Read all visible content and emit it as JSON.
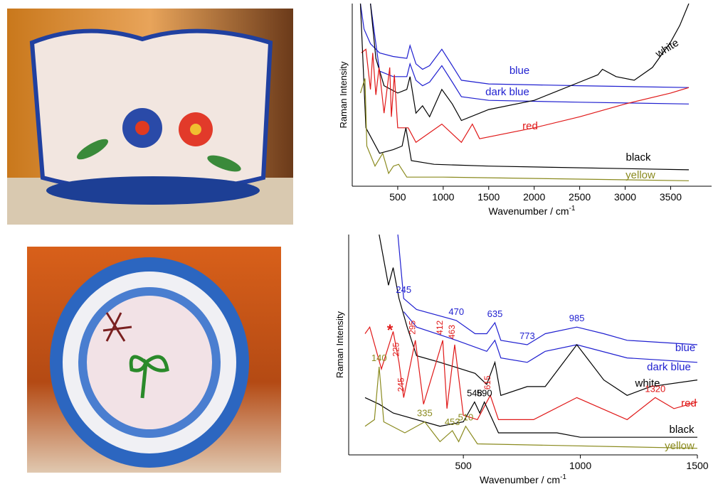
{
  "chart_data": [
    {
      "type": "line",
      "y_label": "Raman Intensity",
      "x_label": "Wavenumber / cm",
      "x_label_sup": "-1",
      "xlim": [
        0,
        3950
      ],
      "xticks": [
        500,
        1000,
        1500,
        2000,
        2500,
        3000,
        3500
      ],
      "ylim": [
        0,
        100
      ],
      "series": [
        {
          "name": "blue",
          "color": "#1f1fd0",
          "x": [
            90,
            130,
            200,
            300,
            450,
            600,
            635,
            700,
            773,
            850,
            985,
            1100,
            1200,
            1500,
            2500,
            3700
          ],
          "values": [
            100,
            86,
            78,
            73,
            71,
            70,
            77,
            67,
            64,
            66,
            75,
            66,
            58,
            56,
            55,
            54
          ],
          "peaks": []
        },
        {
          "name": "dark blue",
          "color": "#1f1fd0",
          "x": [
            200,
            300,
            450,
            600,
            635,
            700,
            773,
            850,
            985,
            1100,
            1200,
            1500,
            2500,
            3700
          ],
          "values": [
            100,
            63,
            60,
            60,
            67,
            58,
            55,
            57,
            66,
            57,
            49,
            47,
            46,
            45
          ],
          "peaks": []
        },
        {
          "name": "white",
          "color": "#000000",
          "x": [
            200,
            260,
            350,
            500,
            600,
            635,
            700,
            773,
            850,
            985,
            1100,
            1200,
            1500,
            2000,
            2500,
            2700,
            2750,
            2900,
            3100,
            3300,
            3500,
            3600,
            3700
          ],
          "values": [
            100,
            70,
            55,
            51,
            53,
            60,
            40,
            44,
            38,
            53,
            45,
            36,
            42,
            47,
            57,
            61,
            64,
            60,
            58,
            65,
            79,
            88,
            100
          ],
          "peaks": []
        },
        {
          "name": "red",
          "color": "#e01818",
          "x": [
            100,
            150,
            200,
            225,
            260,
            295,
            350,
            412,
            430,
            463,
            500,
            615,
            700,
            985,
            1200,
            1320,
            1400,
            2000,
            2500,
            3000,
            3500,
            3700
          ],
          "values": [
            73,
            75,
            53,
            73,
            50,
            65,
            40,
            65,
            38,
            61,
            32,
            32,
            24,
            34,
            24,
            34,
            26,
            32,
            38,
            45,
            51,
            54
          ],
          "peaks": []
        },
        {
          "name": "black",
          "color": "#000000",
          "x": [
            90,
            150,
            300,
            450,
            548,
            590,
            650,
            900,
            1500,
            3700
          ],
          "values": [
            100,
            32,
            18,
            20,
            22,
            32,
            14,
            12,
            11,
            9
          ],
          "peaks": []
        },
        {
          "name": "yellow",
          "color": "#8a8a1e",
          "x": [
            90,
            140,
            160,
            250,
            335,
            400,
            453,
            510,
            600,
            1000,
            3700
          ],
          "values": [
            51,
            59,
            22,
            11,
            18,
            7,
            11,
            12,
            5,
            5,
            3
          ],
          "peaks": []
        }
      ]
    },
    {
      "type": "line",
      "y_label": "Raman Intensity",
      "x_label": "Wavenumber / cm",
      "x_label_sup": "-1",
      "xlim": [
        10,
        1500
      ],
      "xticks": [
        500,
        1000,
        1500
      ],
      "ylim": [
        0,
        100
      ],
      "annotation": "*",
      "series": [
        {
          "name": "blue",
          "color": "#1f1fd0",
          "x": [
            220,
            245,
            300,
            470,
            550,
            600,
            635,
            660,
            773,
            850,
            985,
            1100,
            1200,
            1500
          ],
          "values": [
            100,
            71,
            66,
            61,
            55,
            55,
            60,
            52,
            50,
            55,
            58,
            55,
            52,
            50
          ],
          "peaks": [
            245,
            470,
            635,
            773,
            985
          ]
        },
        {
          "name": "dark blue",
          "color": "#1f1fd0",
          "x": [
            245,
            300,
            470,
            600,
            635,
            660,
            773,
            850,
            985,
            1200,
            1500
          ],
          "values": [
            65,
            58,
            52,
            47,
            52,
            44,
            42,
            47,
            50,
            44,
            42
          ],
          "peaks": []
        },
        {
          "name": "white",
          "color": "#000000",
          "x": [
            140,
            180,
            200,
            225,
            260,
            300,
            400,
            550,
            600,
            635,
            660,
            773,
            850,
            985,
            1100,
            1200,
            1300,
            1500
          ],
          "values": [
            100,
            77,
            85,
            71,
            58,
            45,
            42,
            37,
            32,
            42,
            27,
            31,
            31,
            50,
            34,
            27,
            31,
            34
          ],
          "peaks": []
        },
        {
          "name": "red",
          "color": "#e01818",
          "x": [
            80,
            100,
            150,
            200,
            225,
            245,
            295,
            330,
            412,
            430,
            463,
            500,
            560,
            615,
            650,
            800,
            985,
            1200,
            1320,
            1400,
            1500
          ],
          "values": [
            55,
            58,
            39,
            56,
            42,
            26,
            52,
            23,
            52,
            21,
            50,
            18,
            16,
            27,
            16,
            16,
            26,
            16,
            26,
            21,
            24
          ],
          "peaks": [
            225,
            245,
            295,
            412,
            463,
            615,
            1320
          ]
        },
        {
          "name": "black",
          "color": "#000000",
          "x": [
            80,
            140,
            200,
            400,
            500,
            548,
            570,
            590,
            650,
            900,
            1000,
            1500
          ],
          "values": [
            26,
            23,
            19,
            13,
            15,
            24,
            19,
            24,
            10,
            10,
            8,
            8
          ],
          "peaks": [
            548,
            590
          ]
        },
        {
          "name": "yellow",
          "color": "#8a8a1e",
          "x": [
            80,
            120,
            140,
            160,
            250,
            335,
            400,
            453,
            480,
            510,
            560,
            1500
          ],
          "values": [
            13,
            16,
            40,
            15,
            10,
            15,
            6,
            11,
            6,
            13,
            5,
            3
          ],
          "peaks": [
            140,
            335,
            453,
            510
          ]
        }
      ]
    }
  ]
}
